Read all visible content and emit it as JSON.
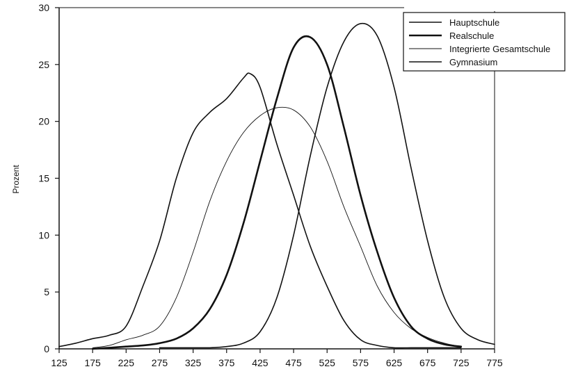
{
  "chart_data": {
    "type": "line",
    "title": "",
    "xlabel": "",
    "ylabel": "Prozent",
    "xlim": [
      125,
      775
    ],
    "ylim": [
      0,
      30
    ],
    "x_ticks": [
      125,
      175,
      225,
      275,
      325,
      375,
      425,
      475,
      525,
      575,
      625,
      675,
      725,
      775
    ],
    "y_ticks": [
      0,
      5,
      10,
      15,
      20,
      25,
      30
    ],
    "grid": false,
    "legend_position": "top-right",
    "series": [
      {
        "name": "Hauptschule",
        "color": "#111111",
        "x": [
          125,
          150,
          175,
          200,
          225,
          250,
          275,
          300,
          325,
          350,
          375,
          400,
          410,
          425,
          450,
          475,
          500,
          525,
          550,
          575,
          600,
          625,
          650,
          675,
          700,
          725
        ],
        "y": [
          0.2,
          0.5,
          0.9,
          1.2,
          2.0,
          5.5,
          9.5,
          15.0,
          19.0,
          20.8,
          22.0,
          23.8,
          24.2,
          23.0,
          18.0,
          13.5,
          9.0,
          5.5,
          2.5,
          0.8,
          0.3,
          0.1,
          0.1,
          0.1,
          0.1,
          0.1
        ]
      },
      {
        "name": "Realschule",
        "color": "#111111",
        "x": [
          175,
          200,
          225,
          250,
          275,
          300,
          325,
          350,
          375,
          400,
          425,
          450,
          475,
          500,
          525,
          550,
          575,
          600,
          625,
          650,
          675,
          700,
          725
        ],
        "y": [
          0.0,
          0.1,
          0.2,
          0.3,
          0.5,
          0.9,
          1.8,
          3.5,
          6.5,
          11.0,
          16.5,
          22.0,
          26.5,
          27.4,
          25.0,
          19.5,
          13.5,
          8.5,
          4.5,
          2.0,
          0.9,
          0.4,
          0.2
        ]
      },
      {
        "name": "Integrierte Gesamtschule",
        "color": "#111111",
        "x": [
          175,
          200,
          225,
          250,
          275,
          300,
          325,
          350,
          375,
          400,
          425,
          450,
          475,
          500,
          525,
          550,
          575,
          600,
          625,
          650,
          675,
          700,
          725
        ],
        "y": [
          0.1,
          0.3,
          0.8,
          1.2,
          2.0,
          4.5,
          8.5,
          13.0,
          16.5,
          19.0,
          20.5,
          21.2,
          21.0,
          19.5,
          16.5,
          12.5,
          9.0,
          5.5,
          3.2,
          1.8,
          1.0,
          0.5,
          0.2
        ]
      },
      {
        "name": "Gymnasium",
        "color": "#111111",
        "x": [
          275,
          300,
          325,
          350,
          375,
          400,
          425,
          450,
          475,
          500,
          525,
          550,
          575,
          600,
          625,
          650,
          675,
          700,
          725,
          750,
          775
        ],
        "y": [
          0.1,
          0.1,
          0.1,
          0.1,
          0.2,
          0.5,
          1.5,
          4.5,
          10.0,
          17.0,
          23.0,
          27.0,
          28.6,
          27.5,
          23.0,
          16.0,
          9.5,
          4.5,
          1.8,
          0.8,
          0.4
        ]
      }
    ]
  }
}
